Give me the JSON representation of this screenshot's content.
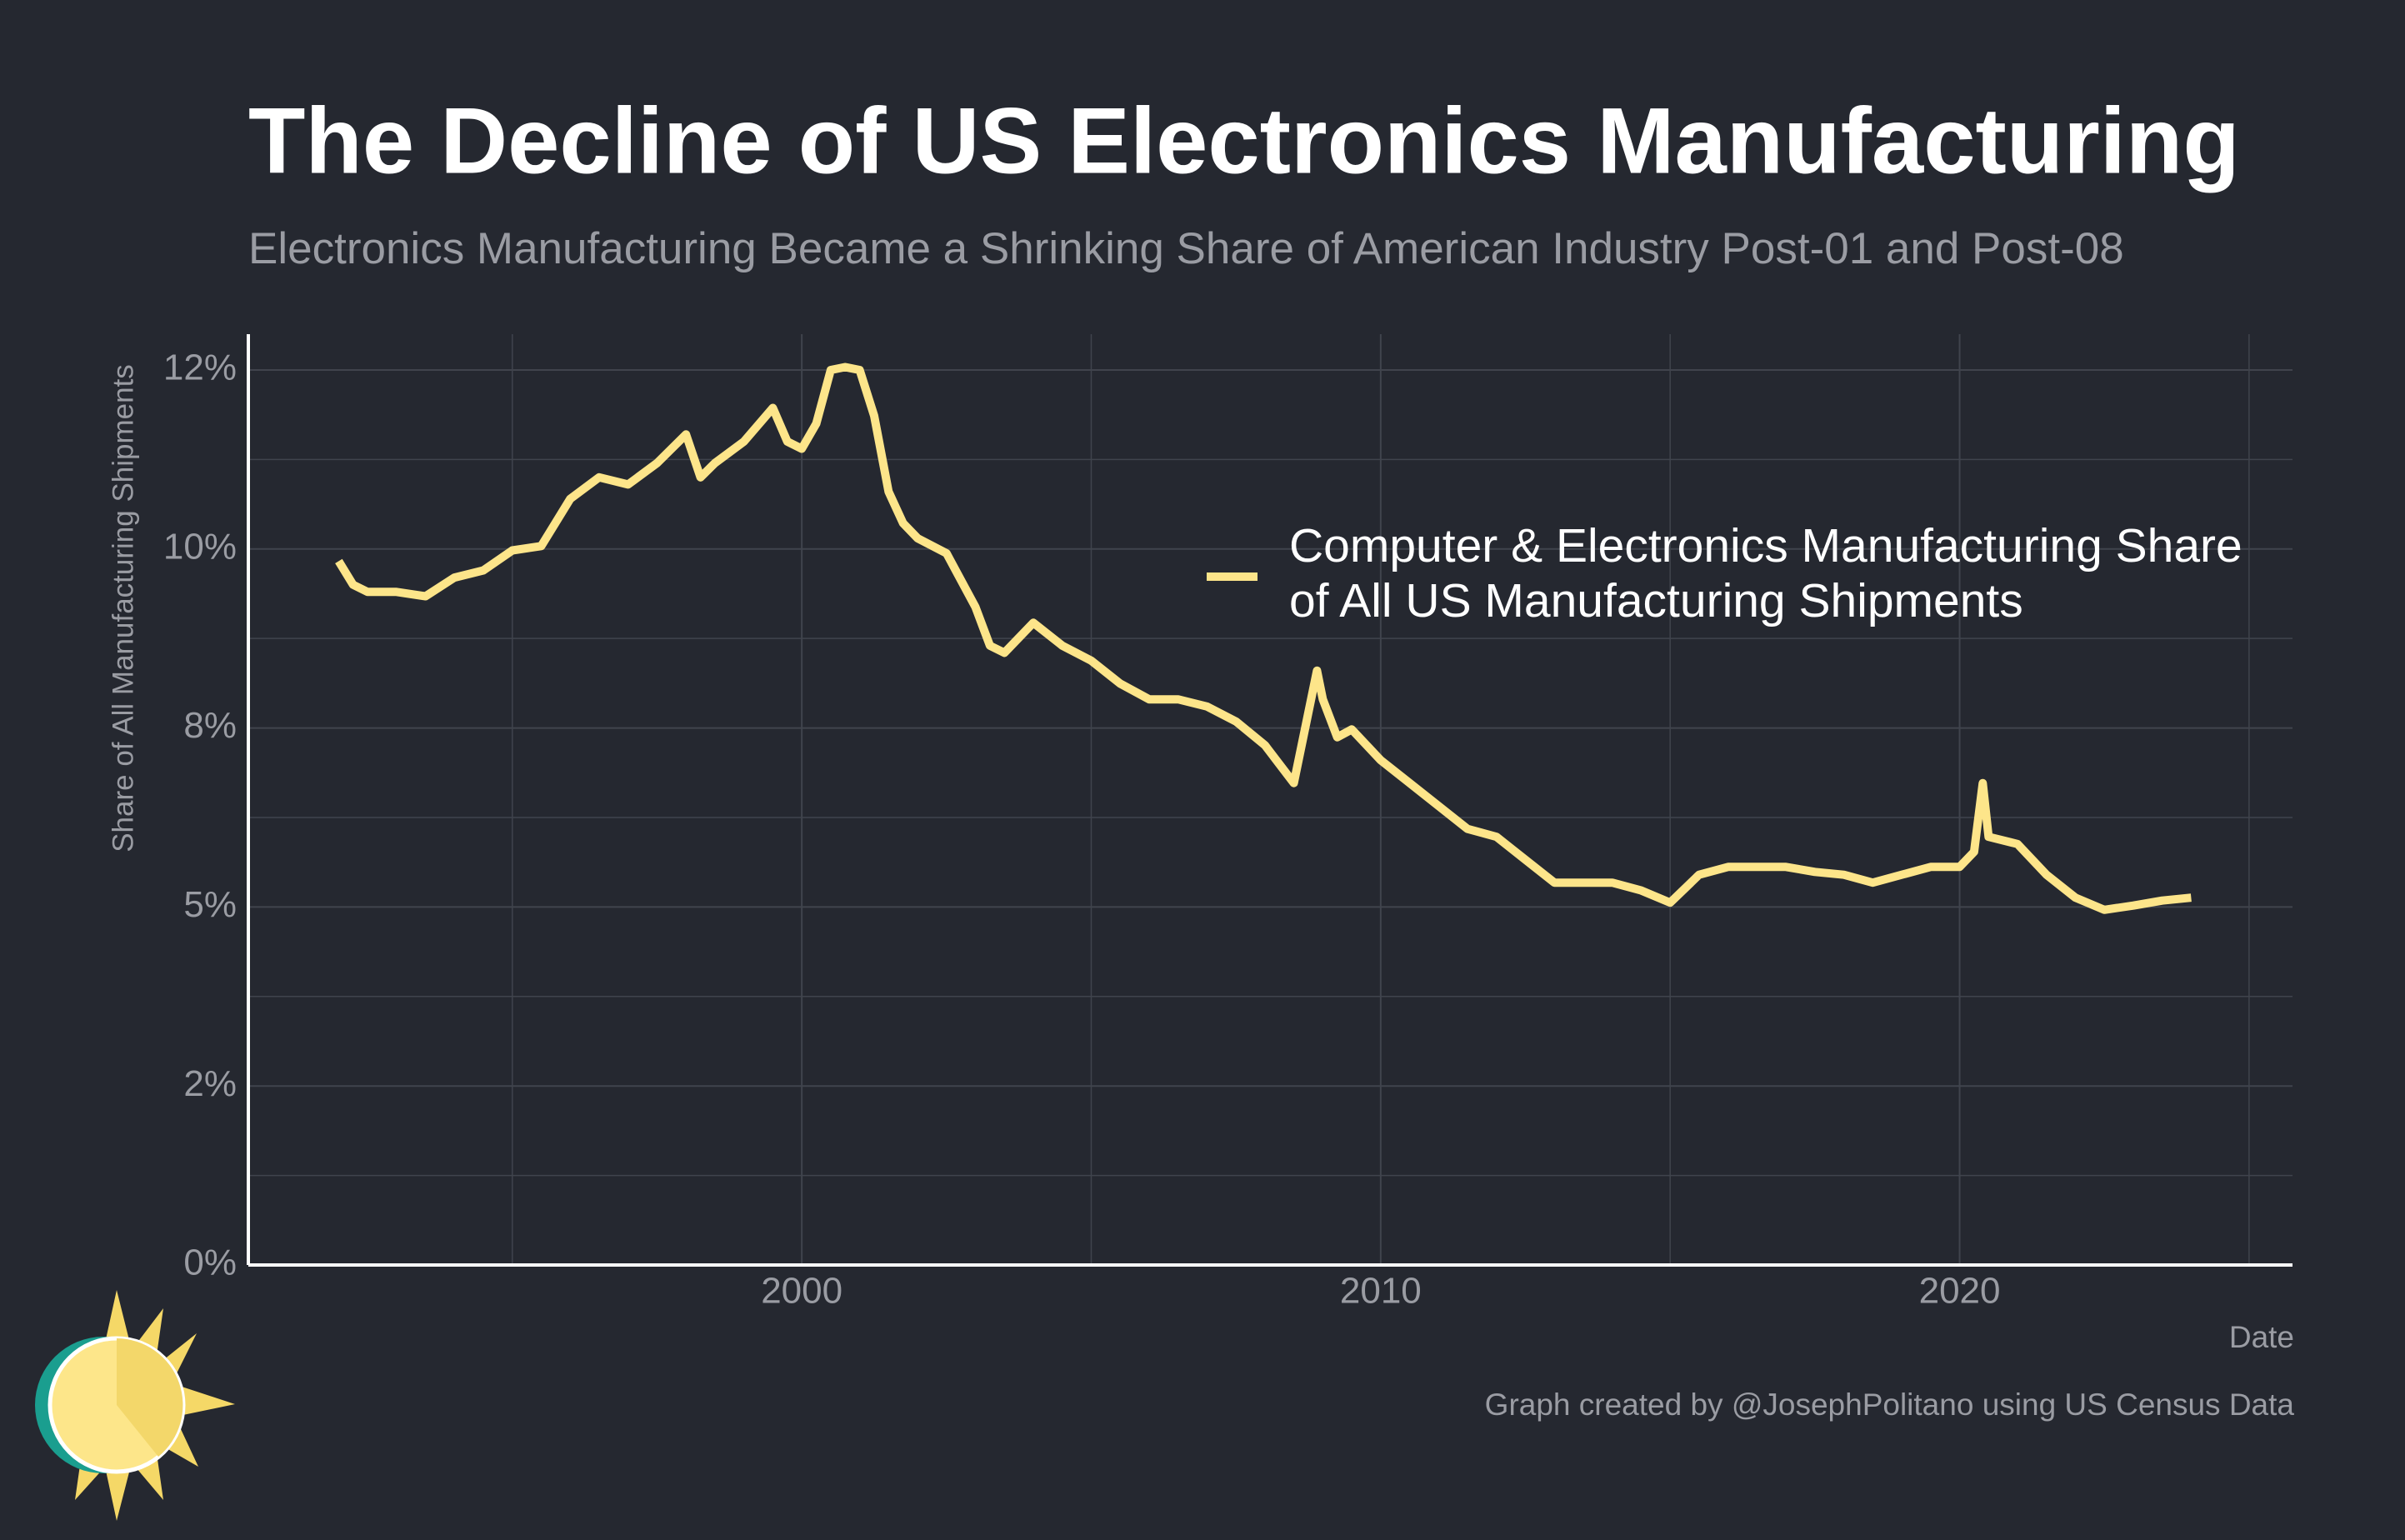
{
  "chart_data": {
    "type": "line",
    "title": "The Decline of US Electronics Manufacturing",
    "subtitle": "Electronics Manufacturing Became a Shrinking Share of American Industry Post-01 and Post-08",
    "y_label": "Share of All Manufacturing Shipments",
    "x_label": "Date",
    "caption": "Graph created by @JosephPolitano using US Census Data",
    "x": [
      1992.0,
      1992.25,
      1992.5,
      1993.0,
      1993.5,
      1994.0,
      1994.5,
      1995.0,
      1995.5,
      1996.0,
      1996.5,
      1997.0,
      1997.5,
      1998.0,
      1998.25,
      1998.5,
      1999.0,
      1999.5,
      1999.75,
      2000.0,
      2000.25,
      2000.5,
      2000.75,
      2001.0,
      2001.25,
      2001.5,
      2001.75,
      2002.0,
      2002.5,
      2003.0,
      2003.25,
      2003.5,
      2004.0,
      2004.5,
      2005.0,
      2005.5,
      2006.0,
      2006.5,
      2007.0,
      2007.5,
      2008.0,
      2008.5,
      2008.9,
      2009.0,
      2009.25,
      2009.5,
      2010.0,
      2010.5,
      2011.0,
      2011.5,
      2012.0,
      2012.5,
      2013.0,
      2013.5,
      2014.0,
      2014.5,
      2015.0,
      2015.5,
      2016.0,
      2016.5,
      2017.0,
      2017.5,
      2018.0,
      2018.5,
      2019.0,
      2019.5,
      2020.0,
      2020.25,
      2020.4,
      2020.5,
      2021.0,
      2021.5,
      2022.0,
      2022.5,
      2023.0,
      2023.5,
      2024.0
    ],
    "series": [
      {
        "name": "Computer & Electronics Manufacturing Share of All US Manufacturing Shipments",
        "color": "#fde58a",
        "values": [
          9.83,
          9.5,
          9.4,
          9.4,
          9.34,
          9.6,
          9.7,
          9.98,
          10.04,
          10.7,
          11.0,
          10.9,
          11.2,
          11.6,
          11.0,
          11.2,
          11.5,
          11.97,
          11.5,
          11.4,
          11.75,
          12.5,
          12.54,
          12.5,
          11.86,
          10.8,
          10.36,
          10.15,
          9.94,
          9.19,
          8.65,
          8.55,
          8.97,
          8.65,
          8.44,
          8.12,
          7.9,
          7.9,
          7.8,
          7.59,
          7.26,
          6.73,
          8.3,
          7.9,
          7.37,
          7.48,
          7.05,
          6.73,
          6.41,
          6.09,
          5.98,
          5.66,
          5.34,
          5.34,
          5.34,
          5.23,
          5.06,
          5.45,
          5.56,
          5.56,
          5.56,
          5.49,
          5.45,
          5.34,
          5.45,
          5.56,
          5.56,
          5.77,
          6.73,
          5.98,
          5.88,
          5.45,
          5.13,
          4.96,
          5.02,
          5.09,
          5.13
        ]
      }
    ],
    "xlim": [
      1990.44,
      2025.75
    ],
    "xticks": [
      2000,
      2010,
      2020
    ],
    "ylim": [
      0,
      13
    ],
    "yticks": [
      {
        "value": 0,
        "label": "0%"
      },
      {
        "value": 2.5,
        "label": "2%"
      },
      {
        "value": 5,
        "label": "5%"
      },
      {
        "value": 7.5,
        "label": "8%"
      },
      {
        "value": 10,
        "label": "10%"
      },
      {
        "value": 12.5,
        "label": "12%"
      }
    ],
    "grid": true,
    "minor_grid": true
  }
}
